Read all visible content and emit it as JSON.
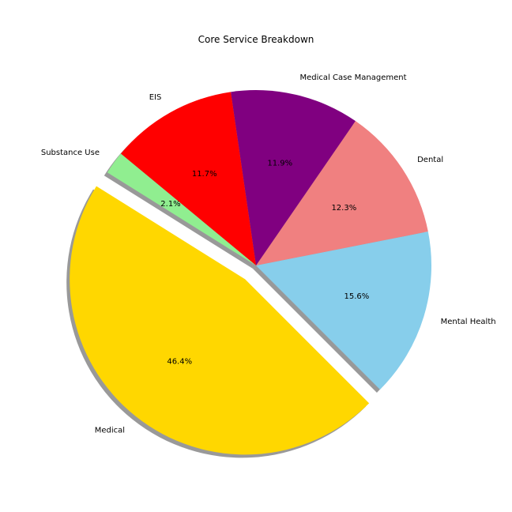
{
  "chart_data": {
    "type": "pie",
    "title": "Core Service Breakdown",
    "categories": [
      "Mental Health",
      "Dental",
      "Medical Case Management",
      "EIS",
      "Substance Use",
      "Medical"
    ],
    "values": [
      15.6,
      12.3,
      11.9,
      11.7,
      2.1,
      46.4
    ],
    "value_labels": [
      "15.6%",
      "12.3%",
      "11.9%",
      "11.7%",
      "2.1%",
      "46.4%"
    ],
    "colors": [
      "#87ceeb",
      "#f08080",
      "#800080",
      "#ff0000",
      "#90ee90",
      "#ffd700"
    ],
    "exploded": [
      "Medical"
    ],
    "start_angle_deg": -45,
    "direction": "counterclockwise",
    "shadow": true,
    "legend": "none"
  }
}
